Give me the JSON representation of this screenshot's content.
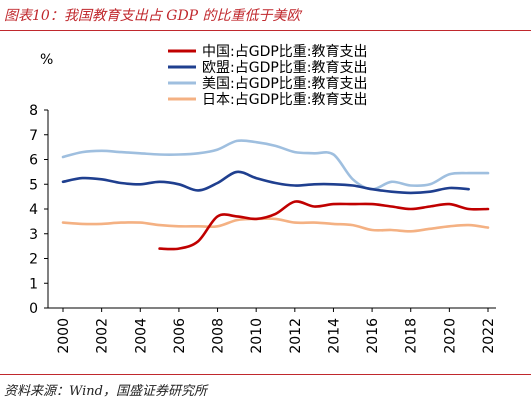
{
  "header": {
    "title": "图表10：我国教育支出占 GDP 的比重低于美欧"
  },
  "footer": {
    "source": "资料来源：Wind，国盛证券研究所"
  },
  "chart_data": {
    "type": "line",
    "unit": "%",
    "xlabel": "",
    "ylabel": "",
    "xlim": [
      2000,
      2022
    ],
    "ylim": [
      0,
      8
    ],
    "xticks": [
      2000,
      2002,
      2004,
      2006,
      2008,
      2010,
      2012,
      2014,
      2016,
      2018,
      2020,
      2022
    ],
    "yticks": [
      0,
      1,
      2,
      3,
      4,
      5,
      6,
      7,
      8
    ],
    "grid": false,
    "legend_position": "top-right",
    "series": [
      {
        "name": "中国:占GDP比重:教育支出",
        "color": "#c00000",
        "x": [
          2005,
          2006,
          2007,
          2008,
          2009,
          2010,
          2011,
          2012,
          2013,
          2014,
          2015,
          2016,
          2017,
          2018,
          2019,
          2020,
          2021,
          2022
        ],
        "y": [
          2.4,
          2.4,
          2.7,
          3.7,
          3.7,
          3.6,
          3.8,
          4.3,
          4.1,
          4.2,
          4.2,
          4.2,
          4.1,
          4.0,
          4.1,
          4.2,
          4.0,
          4.0
        ]
      },
      {
        "name": "欧盟:占GDP比重:教育支出",
        "color": "#1f3f8f",
        "x": [
          2000,
          2001,
          2002,
          2003,
          2004,
          2005,
          2006,
          2007,
          2008,
          2009,
          2010,
          2011,
          2012,
          2013,
          2014,
          2015,
          2016,
          2017,
          2018,
          2019,
          2020,
          2021
        ],
        "y": [
          5.1,
          5.25,
          5.2,
          5.05,
          5.0,
          5.1,
          5.0,
          4.75,
          5.05,
          5.5,
          5.25,
          5.05,
          4.95,
          5.0,
          5.0,
          4.95,
          4.8,
          4.7,
          4.65,
          4.7,
          4.85,
          4.8
        ]
      },
      {
        "name": "美国:占GDP比重:教育支出",
        "color": "#9fbfdf",
        "x": [
          2000,
          2001,
          2002,
          2003,
          2004,
          2005,
          2006,
          2007,
          2008,
          2009,
          2010,
          2011,
          2012,
          2013,
          2014,
          2015,
          2016,
          2017,
          2018,
          2019,
          2020,
          2021,
          2022
        ],
        "y": [
          6.1,
          6.3,
          6.35,
          6.3,
          6.25,
          6.2,
          6.2,
          6.25,
          6.4,
          6.75,
          6.7,
          6.55,
          6.3,
          6.25,
          6.2,
          5.2,
          4.8,
          5.1,
          4.95,
          5.0,
          5.4,
          5.45,
          5.45
        ]
      },
      {
        "name": "日本:占GDP比重:教育支出",
        "color": "#f4b183",
        "x": [
          2000,
          2001,
          2002,
          2003,
          2004,
          2005,
          2006,
          2007,
          2008,
          2009,
          2010,
          2011,
          2012,
          2013,
          2014,
          2015,
          2016,
          2017,
          2018,
          2019,
          2020,
          2021,
          2022
        ],
        "y": [
          3.45,
          3.4,
          3.4,
          3.45,
          3.45,
          3.35,
          3.3,
          3.3,
          3.3,
          3.55,
          3.6,
          3.6,
          3.45,
          3.45,
          3.4,
          3.35,
          3.15,
          3.15,
          3.1,
          3.2,
          3.3,
          3.35,
          3.25
        ]
      }
    ]
  }
}
